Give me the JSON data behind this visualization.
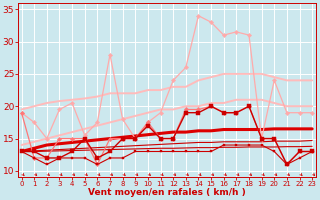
{
  "x": [
    0,
    1,
    2,
    3,
    4,
    5,
    6,
    7,
    8,
    9,
    10,
    11,
    12,
    13,
    14,
    15,
    16,
    17,
    18,
    19,
    20,
    21,
    22,
    23
  ],
  "series": [
    {
      "label": "light_pink_zigzag",
      "color": "#ffaaaa",
      "lw": 0.9,
      "marker": "D",
      "markersize": 2.2,
      "y": [
        19,
        17.5,
        15,
        19.5,
        20.5,
        15.5,
        17.5,
        28,
        18,
        15,
        17.5,
        19,
        24,
        26,
        34,
        33,
        31,
        31.5,
        31,
        15,
        24,
        19,
        19,
        19
      ]
    },
    {
      "label": "medium_pink_zigzag",
      "color": "#ff7777",
      "lw": 0.9,
      "marker": "D",
      "markersize": 2.2,
      "y": [
        19,
        12,
        12,
        15,
        15,
        15,
        11,
        15,
        15,
        15,
        17.5,
        15,
        15,
        19.5,
        19.5,
        20,
        19,
        19,
        20,
        15,
        15,
        11,
        13,
        13
      ]
    },
    {
      "label": "pink_upper_smooth",
      "color": "#ffbbbb",
      "lw": 1.4,
      "marker": null,
      "markersize": 0,
      "y": [
        19.5,
        20,
        20.5,
        20.8,
        21,
        21.2,
        21.5,
        22,
        22,
        22,
        22.5,
        22.5,
        23,
        23,
        24,
        24.5,
        25,
        25,
        25,
        25,
        24.5,
        24,
        24,
        24
      ]
    },
    {
      "label": "pink_lower_smooth",
      "color": "#ffbbbb",
      "lw": 1.4,
      "marker": null,
      "markersize": 0,
      "y": [
        14,
        14.5,
        15,
        15.5,
        16,
        16.5,
        17,
        17.5,
        18,
        18.5,
        19,
        19.5,
        19.5,
        20,
        20,
        20.5,
        20.5,
        21,
        21,
        21,
        20.5,
        20,
        20,
        20
      ]
    },
    {
      "label": "dark_red_jagged",
      "color": "#cc0000",
      "lw": 1.0,
      "marker": "s",
      "markersize": 2.2,
      "y": [
        13,
        13,
        12,
        12,
        13,
        15,
        12,
        13,
        15,
        15,
        17,
        15,
        15,
        19,
        19,
        20,
        19,
        19,
        20,
        15,
        15,
        11,
        13,
        13
      ]
    },
    {
      "label": "red_thick_upper",
      "color": "#dd0000",
      "lw": 2.2,
      "marker": null,
      "markersize": 0,
      "y": [
        13,
        13.5,
        14,
        14.2,
        14.4,
        14.6,
        14.8,
        15,
        15.2,
        15.4,
        15.6,
        15.8,
        16,
        16,
        16.2,
        16.2,
        16.4,
        16.4,
        16.4,
        16.4,
        16.5,
        16.5,
        16.5,
        16.5
      ]
    },
    {
      "label": "red_thin_lower1",
      "color": "#cc0000",
      "lw": 0.8,
      "marker": null,
      "markersize": 0,
      "y": [
        13,
        13.1,
        13.2,
        13.3,
        13.4,
        13.5,
        13.6,
        13.7,
        13.8,
        13.9,
        14,
        14.1,
        14.2,
        14.3,
        14.4,
        14.4,
        14.5,
        14.5,
        14.5,
        14.5,
        14.6,
        14.6,
        14.6,
        14.7
      ]
    },
    {
      "label": "red_thin_lower2",
      "color": "#cc0000",
      "lw": 0.8,
      "marker": null,
      "markersize": 0,
      "y": [
        13,
        13,
        13.05,
        13.1,
        13.15,
        13.2,
        13.25,
        13.3,
        13.35,
        13.4,
        13.45,
        13.5,
        13.5,
        13.55,
        13.6,
        13.6,
        13.65,
        13.65,
        13.7,
        13.7,
        13.7,
        13.75,
        13.75,
        13.8
      ]
    },
    {
      "label": "red_jagged_low",
      "color": "#cc0000",
      "lw": 0.8,
      "marker": "s",
      "markersize": 2.0,
      "y": [
        13,
        12,
        11,
        12,
        12,
        12,
        11,
        12,
        12,
        13,
        13,
        13,
        13,
        13,
        13,
        13,
        14,
        14,
        14,
        14,
        13,
        11,
        12,
        13
      ]
    }
  ],
  "wind_arrows": {
    "y_data": 9.2,
    "color": "#cc0000"
  },
  "xlim": [
    -0.3,
    23.3
  ],
  "ylim": [
    9,
    36
  ],
  "yticks": [
    10,
    15,
    20,
    25,
    30,
    35
  ],
  "xticks": [
    0,
    1,
    2,
    3,
    4,
    5,
    6,
    7,
    8,
    9,
    10,
    11,
    12,
    13,
    14,
    15,
    16,
    17,
    18,
    19,
    20,
    21,
    22,
    23
  ],
  "xlabel": "Vent moyen/en rafales ( km/h )",
  "background_color": "#cce8ee",
  "grid_color": "#ffffff",
  "tick_color": "#cc0000",
  "label_color": "#cc0000",
  "xlabel_fontsize": 6.5,
  "ytick_fontsize": 6.5,
  "xtick_fontsize": 5.0
}
